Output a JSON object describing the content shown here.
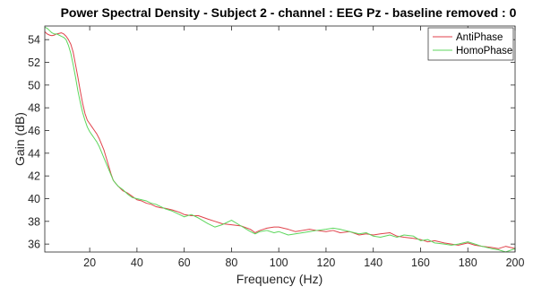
{
  "chart_data": {
    "type": "line",
    "title": "Power Spectral Density - Subject 2 - channel : EEG Pz - baseline removed : 0",
    "xlabel": "Frequency (Hz)",
    "ylabel": "Gain (dB)",
    "xlim": [
      1,
      200
    ],
    "ylim": [
      35.3,
      55.2
    ],
    "xticks": [
      20,
      40,
      60,
      80,
      100,
      120,
      140,
      160,
      180,
      200
    ],
    "yticks": [
      36,
      38,
      40,
      42,
      44,
      46,
      48,
      50,
      52,
      54
    ],
    "grid": false,
    "legend_position": "top-right",
    "series": [
      {
        "name": "AntiPhase",
        "color": "#e0424b",
        "x": [
          1,
          2,
          3,
          4,
          5,
          6,
          7,
          8,
          9,
          10,
          11,
          12,
          13,
          14,
          15,
          16,
          17,
          18,
          19,
          20,
          21,
          22,
          23,
          24,
          25,
          26,
          27,
          28,
          29,
          30,
          32,
          34,
          36,
          38,
          40,
          42,
          44,
          46,
          48,
          50,
          52,
          55,
          58,
          60,
          63,
          66,
          70,
          73,
          76,
          80,
          84,
          88,
          90,
          92,
          95,
          98,
          100,
          104,
          107,
          110,
          113,
          116,
          120,
          123,
          126,
          130,
          134,
          137,
          140,
          143,
          147,
          150,
          153,
          157,
          160,
          163,
          166,
          170,
          173,
          176,
          180,
          183,
          186,
          190,
          193,
          196,
          200
        ],
        "y": [
          54.7,
          54.5,
          54.4,
          54.35,
          54.4,
          54.5,
          54.55,
          54.6,
          54.5,
          54.3,
          54.0,
          53.6,
          52.9,
          51.8,
          50.7,
          49.5,
          48.4,
          47.5,
          46.9,
          46.6,
          46.3,
          46.0,
          45.7,
          45.3,
          44.8,
          44.3,
          43.6,
          42.9,
          42.2,
          41.6,
          41.1,
          40.7,
          40.5,
          40.2,
          39.9,
          39.8,
          39.6,
          39.5,
          39.3,
          39.2,
          39.15,
          39.0,
          38.8,
          38.6,
          38.5,
          38.5,
          38.2,
          38.0,
          37.8,
          37.7,
          37.6,
          37.3,
          37.0,
          37.2,
          37.4,
          37.5,
          37.5,
          37.3,
          37.1,
          37.2,
          37.3,
          37.2,
          37.1,
          37.2,
          37.0,
          37.1,
          36.8,
          36.9,
          36.8,
          36.9,
          37.0,
          36.7,
          36.6,
          36.5,
          36.4,
          36.2,
          36.3,
          36.1,
          36.0,
          35.9,
          36.1,
          35.9,
          35.8,
          35.7,
          35.6,
          35.8,
          35.6
        ]
      },
      {
        "name": "HomoPhase",
        "color": "#5cd65c",
        "x": [
          1,
          2,
          3,
          4,
          5,
          6,
          7,
          8,
          9,
          10,
          11,
          12,
          13,
          14,
          15,
          16,
          17,
          18,
          19,
          20,
          21,
          22,
          23,
          24,
          25,
          26,
          27,
          28,
          29,
          30,
          32,
          34,
          36,
          38,
          40,
          42,
          44,
          46,
          48,
          50,
          52,
          55,
          58,
          60,
          63,
          66,
          70,
          73,
          76,
          80,
          84,
          88,
          90,
          92,
          95,
          98,
          100,
          104,
          107,
          110,
          113,
          116,
          120,
          123,
          126,
          130,
          134,
          137,
          140,
          143,
          147,
          150,
          153,
          157,
          160,
          163,
          166,
          170,
          173,
          176,
          180,
          183,
          186,
          190,
          193,
          196,
          200
        ],
        "y": [
          55.1,
          55.0,
          54.8,
          54.6,
          54.5,
          54.5,
          54.4,
          54.3,
          54.2,
          54.0,
          53.5,
          52.8,
          51.8,
          50.7,
          49.5,
          48.5,
          47.6,
          46.9,
          46.3,
          45.9,
          45.6,
          45.3,
          45.0,
          44.6,
          44.1,
          43.6,
          43.1,
          42.6,
          42.1,
          41.6,
          41.1,
          40.8,
          40.4,
          40.1,
          40.0,
          39.9,
          39.8,
          39.6,
          39.5,
          39.3,
          39.1,
          38.9,
          38.6,
          38.4,
          38.6,
          38.3,
          37.8,
          37.5,
          37.7,
          38.1,
          37.6,
          37.1,
          36.9,
          37.1,
          37.2,
          37.0,
          37.1,
          36.8,
          36.9,
          37.0,
          37.1,
          37.2,
          37.3,
          37.4,
          37.3,
          37.1,
          36.9,
          37.0,
          36.7,
          36.6,
          36.8,
          36.6,
          36.8,
          36.7,
          36.3,
          36.4,
          36.1,
          36.0,
          35.9,
          36.0,
          36.2,
          36.0,
          35.8,
          35.6,
          35.5,
          35.3,
          35.6
        ]
      }
    ]
  }
}
